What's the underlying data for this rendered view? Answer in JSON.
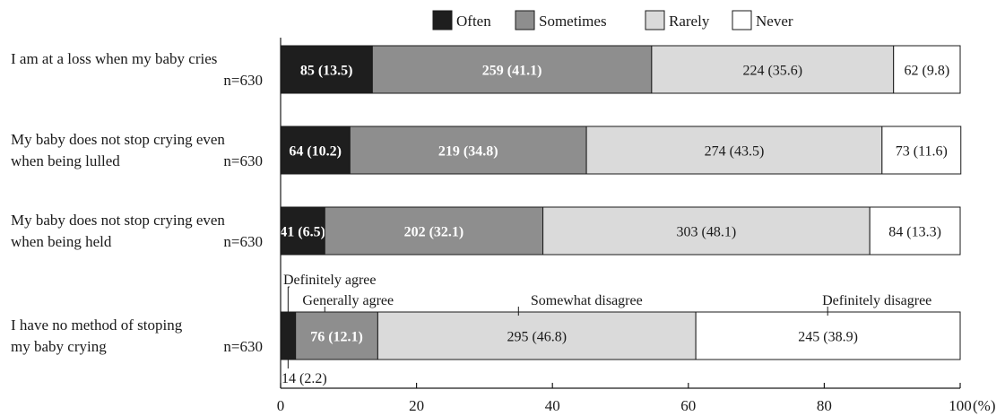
{
  "chart_data": {
    "type": "bar",
    "orientation": "horizontal",
    "stacked": "percent",
    "legend": {
      "position": "top",
      "entries": [
        {
          "label": "Often",
          "color": "#1e1e1e"
        },
        {
          "label": "Sometimes",
          "color": "#8e8e8e"
        },
        {
          "label": "Rarely",
          "color": "#dadada"
        },
        {
          "label": "Never",
          "color": "#ffffff"
        }
      ]
    },
    "x_axis": {
      "range": [
        0,
        100
      ],
      "ticks": [
        0,
        20,
        40,
        60,
        80,
        100
      ],
      "tick_labels": [
        "0",
        "20",
        "40",
        "60",
        "80",
        "100"
      ],
      "unit_label": "(%)"
    },
    "grid": false,
    "rows": [
      {
        "label_lines": [
          "I am at a loss when my baby cries"
        ],
        "n_label": "n=630",
        "segments": [
          {
            "count": 85,
            "percent": 13.5,
            "label": "85 (13.5)"
          },
          {
            "count": 259,
            "percent": 41.1,
            "label": "259 (41.1)"
          },
          {
            "count": 224,
            "percent": 35.6,
            "label": "224 (35.6)"
          },
          {
            "count": 62,
            "percent": 9.8,
            "label": "62 (9.8)"
          }
        ]
      },
      {
        "label_lines": [
          "My baby does not stop crying even",
          "when being lulled"
        ],
        "n_label": "n=630",
        "segments": [
          {
            "count": 64,
            "percent": 10.2,
            "label": "64 (10.2)"
          },
          {
            "count": 219,
            "percent": 34.8,
            "label": "219 (34.8)"
          },
          {
            "count": 274,
            "percent": 43.5,
            "label": "274 (43.5)"
          },
          {
            "count": 73,
            "percent": 11.6,
            "label": "73 (11.6)"
          }
        ]
      },
      {
        "label_lines": [
          "My baby does not stop crying even",
          "when being held"
        ],
        "n_label": "n=630",
        "segments": [
          {
            "count": 41,
            "percent": 6.5,
            "label": "41 (6.5)"
          },
          {
            "count": 202,
            "percent": 32.1,
            "label": "202 (32.1)"
          },
          {
            "count": 303,
            "percent": 48.1,
            "label": "303 (48.1)"
          },
          {
            "count": 84,
            "percent": 13.3,
            "label": "84 (13.3)"
          }
        ]
      },
      {
        "label_lines": [
          "I have no method of stoping",
          "my baby crying"
        ],
        "n_label": "n=630",
        "segment_names": [
          "Definitely agree",
          "Generally agree",
          "Somewhat disagree",
          "Definitely disagree"
        ],
        "segments": [
          {
            "count": 14,
            "percent": 2.2,
            "label": "14 (2.2)"
          },
          {
            "count": 76,
            "percent": 12.1,
            "label": "76 (12.1)"
          },
          {
            "count": 295,
            "percent": 46.8,
            "label": "295 (46.8)"
          },
          {
            "count": 245,
            "percent": 38.9,
            "label": "245 (38.9)"
          }
        ]
      }
    ]
  }
}
